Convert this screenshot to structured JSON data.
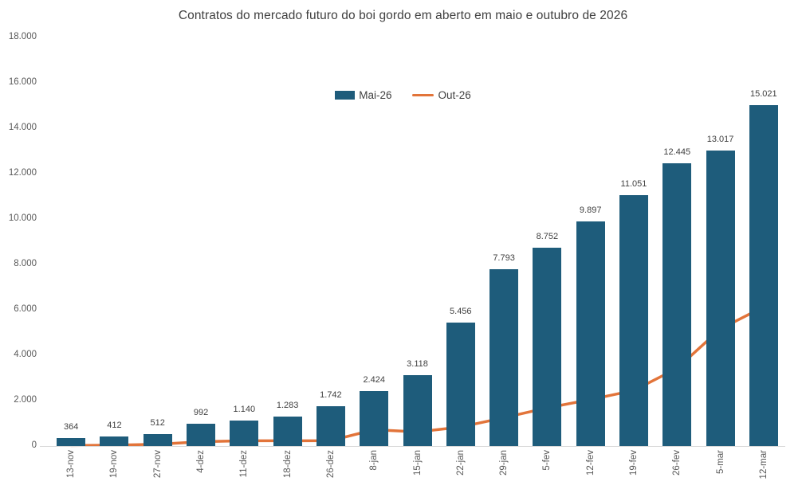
{
  "title": "Contratos do mercado futuro do boi gordo em aberto em maio  e outubro de 2026",
  "colors": {
    "bar": "#1e5c7b",
    "line": "#e2743a",
    "title_text": "#404040",
    "axis_text": "#595959",
    "data_label_text": "#404040",
    "axis_line": "#d9d9d9",
    "background": "#ffffff"
  },
  "legend": {
    "position": "top-center",
    "items": [
      {
        "label": "Mai-26",
        "swatch": "bar"
      },
      {
        "label": "Out-26",
        "swatch": "line"
      }
    ]
  },
  "chart_data": {
    "type": "bar",
    "subtype": "bar-and-line-combo",
    "title": "Contratos do mercado futuro do boi gordo em aberto em maio  e outubro de 2026",
    "xlabel": "",
    "ylabel": "",
    "grid": false,
    "legend_position": "top-center",
    "categories": [
      "13-nov",
      "19-nov",
      "27-nov",
      "4-dez",
      "11-dez",
      "18-dez",
      "26-dez",
      "8-jan",
      "15-jan",
      "22-jan",
      "29-jan",
      "5-fev",
      "12-fev",
      "19-fev",
      "26-fev",
      "5-mar",
      "12-mar"
    ],
    "series": [
      {
        "name": "Mai-26",
        "type": "bar",
        "values": [
          364,
          412,
          512,
          992,
          1140,
          1283,
          1742,
          2424,
          3118,
          5456,
          7793,
          8752,
          9897,
          11051,
          12445,
          13017,
          15021
        ],
        "data_labels": [
          "364",
          "412",
          "512",
          "992",
          "1.140",
          "1.283",
          "1.742",
          "2.424",
          "3.118",
          "5.456",
          "7.793",
          "8.752",
          "9.897",
          "11.051",
          "12.445",
          "13.017",
          "15.021"
        ]
      },
      {
        "name": "Out-26",
        "type": "line",
        "values": [
          20,
          40,
          80,
          190,
          230,
          230,
          240,
          720,
          620,
          840,
          1250,
          1680,
          2050,
          2450,
          3420,
          5160,
          6130
        ]
      }
    ],
    "y_axis": {
      "min": 0,
      "max": 18000,
      "step": 2000,
      "tick_labels": [
        "0",
        "2.000",
        "4.000",
        "6.000",
        "8.000",
        "10.000",
        "12.000",
        "14.000",
        "16.000",
        "18.000"
      ]
    }
  }
}
